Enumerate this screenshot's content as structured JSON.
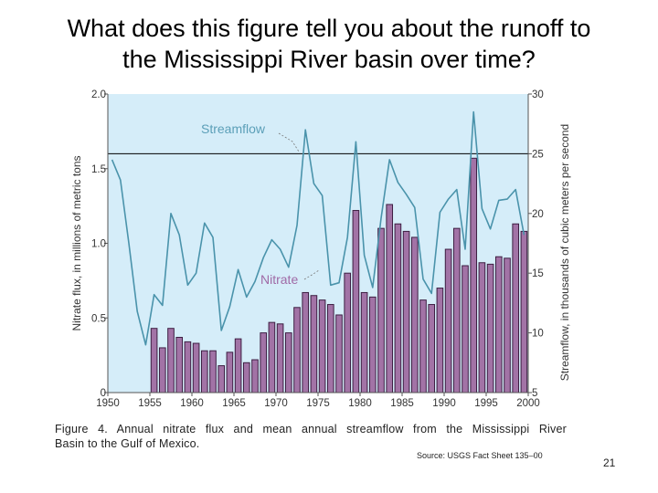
{
  "slide": {
    "title_line1": "What does this figure tell you about the runoff to",
    "title_line2": "the Mississippi River basin over time?",
    "caption_line1": "Figure 4.  Annual nitrate flux and mean annual streamflow from the Mississippi River",
    "caption_line2": "Basin to the Gulf of Mexico.",
    "source": "Source: USGS Fact Sheet 135–00",
    "slide_number": "21"
  },
  "colors": {
    "plot_background": "#d5edf9",
    "bar_fill": "#a273a6",
    "bar_stroke": "#3d1e42",
    "streamflow_line": "#4a93ab",
    "series_label": "#5b9fb8",
    "nitrate_label": "#a06aa6",
    "reference_line": "#000000"
  },
  "chart_data": {
    "type": "bar",
    "x_ticks": [
      "1950",
      "1955",
      "1960",
      "1965",
      "1970",
      "1975",
      "1980",
      "1985",
      "1990",
      "1995",
      "2000"
    ],
    "xlim": [
      1950,
      2000
    ],
    "y_left_label": "Nitrate flux, in millions of metric tons",
    "y_left_ticks": [
      "0",
      "0.5",
      "1.0",
      "1.5",
      "2.0"
    ],
    "y_left_lim": [
      0,
      2.0
    ],
    "y_right_label": "Streamflow, in thousands of cubic meters per second",
    "y_right_ticks": [
      "5",
      "10",
      "15",
      "20",
      "25",
      "30"
    ],
    "y_right_lim": [
      5,
      30
    ],
    "grid": false,
    "reference_line_right": 25,
    "series": [
      {
        "name": "Nitrate",
        "type": "bar",
        "axis": "left",
        "x": [
          1955,
          1956,
          1957,
          1958,
          1959,
          1960,
          1961,
          1962,
          1963,
          1964,
          1965,
          1966,
          1967,
          1968,
          1969,
          1970,
          1971,
          1972,
          1973,
          1974,
          1975,
          1976,
          1977,
          1978,
          1979,
          1980,
          1981,
          1982,
          1983,
          1984,
          1985,
          1986,
          1987,
          1988,
          1989,
          1990,
          1991,
          1992,
          1993,
          1994,
          1995,
          1996,
          1997,
          1998,
          1999
        ],
        "values": [
          0.43,
          0.3,
          0.43,
          0.37,
          0.34,
          0.33,
          0.28,
          0.28,
          0.18,
          0.27,
          0.36,
          0.2,
          0.22,
          0.4,
          0.47,
          0.46,
          0.4,
          0.57,
          0.67,
          0.65,
          0.62,
          0.59,
          0.52,
          0.8,
          1.22,
          0.67,
          0.64,
          1.1,
          1.26,
          1.13,
          1.08,
          1.04,
          0.62,
          0.59,
          0.7,
          0.96,
          1.1,
          0.85,
          1.57,
          0.87,
          0.86,
          0.91,
          0.9,
          1.13,
          1.08
        ]
      },
      {
        "name": "Streamflow",
        "type": "line",
        "axis": "right",
        "x": [
          1950,
          1951,
          1952,
          1953,
          1954,
          1955,
          1956,
          1957,
          1958,
          1959,
          1960,
          1961,
          1962,
          1963,
          1964,
          1965,
          1966,
          1967,
          1968,
          1969,
          1970,
          1971,
          1972,
          1973,
          1974,
          1975,
          1976,
          1977,
          1978,
          1979,
          1980,
          1981,
          1982,
          1983,
          1984,
          1985,
          1986,
          1987,
          1988,
          1989,
          1990,
          1991,
          1992,
          1993,
          1994,
          1995,
          1996,
          1997,
          1998,
          1999
        ],
        "values": [
          24.5,
          22.8,
          17.5,
          11.8,
          9.0,
          13.2,
          12.3,
          20.0,
          18.2,
          14.0,
          15.0,
          19.2,
          18.0,
          10.2,
          12.2,
          15.3,
          13.0,
          14.3,
          16.3,
          17.8,
          17.0,
          15.5,
          19.0,
          27.0,
          22.5,
          21.5,
          14.0,
          14.2,
          18.0,
          26.0,
          16.5,
          13.8,
          19.6,
          24.5,
          22.6,
          21.6,
          20.5,
          14.5,
          13.3,
          20.1,
          21.2,
          22.0,
          17.0,
          28.5,
          20.4,
          18.7,
          21.1,
          21.2,
          22.0,
          18.2
        ]
      }
    ],
    "annotations": [
      {
        "text": "Streamflow",
        "points_to": "Streamflow"
      },
      {
        "text": "Nitrate",
        "points_to": "Nitrate"
      }
    ]
  }
}
